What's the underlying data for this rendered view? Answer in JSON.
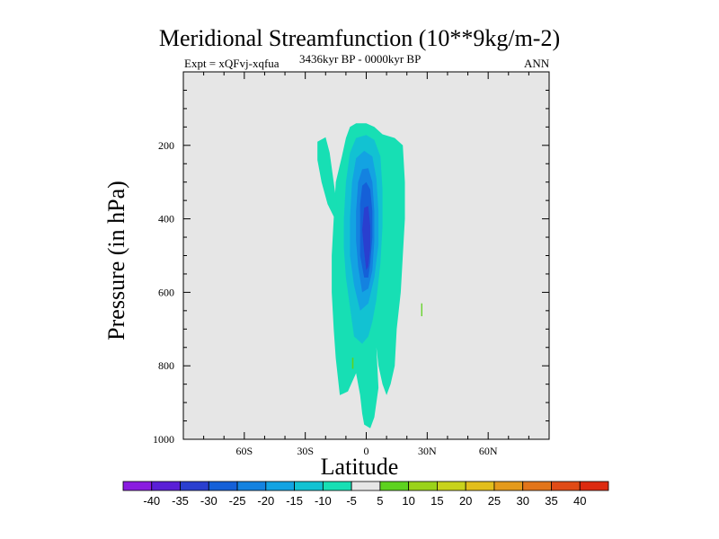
{
  "chart_data": {
    "type": "contour",
    "title": "Meridional Streamfunction (10**9kg/m-2)",
    "subtitle_left": "Expt = xQFvj-xqfua",
    "subtitle_center": "3436kyr BP - 0000kyr BP",
    "subtitle_right": "ANN",
    "xlabel": "Latitude",
    "ylabel": "Pressure (in hPa)",
    "xlim": [
      -90,
      90
    ],
    "ylim": [
      1000,
      0
    ],
    "x_ticks": [
      {
        "value": -60,
        "label": "60S"
      },
      {
        "value": -30,
        "label": "30S"
      },
      {
        "value": 0,
        "label": "0"
      },
      {
        "value": 30,
        "label": "30N"
      },
      {
        "value": 60,
        "label": "60N"
      }
    ],
    "y_ticks": [
      {
        "value": 200,
        "label": "200"
      },
      {
        "value": 400,
        "label": "400"
      },
      {
        "value": 600,
        "label": "600"
      },
      {
        "value": 800,
        "label": "800"
      },
      {
        "value": 1000,
        "label": "1000"
      }
    ],
    "background_color": "#e6e6e6",
    "colorbar": {
      "labels": [
        "-40",
        "-35",
        "-30",
        "-25",
        "-20",
        "-15",
        "-10",
        "-5",
        "5",
        "10",
        "15",
        "20",
        "25",
        "30",
        "35",
        "40"
      ],
      "colors": [
        "#8a1be0",
        "#5a1fd6",
        "#2a3fcf",
        "#1560d8",
        "#1482e0",
        "#13a3e2",
        "#12c2d2",
        "#17dfb4",
        "#e6e6e6",
        "#5dd21f",
        "#9ad21a",
        "#c8d21c",
        "#e2be1c",
        "#e49a1c",
        "#e2751a",
        "#e04b16",
        "#dc2a10"
      ]
    },
    "contours": [
      {
        "level": "-5",
        "color": "#17dfb4",
        "points": [
          [
            -13,
            880
          ],
          [
            -15,
            780
          ],
          [
            -16,
            700
          ],
          [
            -17,
            600
          ],
          [
            -17,
            500
          ],
          [
            -16,
            400
          ],
          [
            -15,
            300
          ],
          [
            -12,
            230
          ],
          [
            -10,
            180
          ],
          [
            -8,
            150
          ],
          [
            -5,
            140
          ],
          [
            0,
            140
          ],
          [
            4,
            150
          ],
          [
            8,
            170
          ],
          [
            14,
            180
          ],
          [
            18,
            200
          ],
          [
            19,
            300
          ],
          [
            19,
            400
          ],
          [
            18,
            500
          ],
          [
            17,
            600
          ],
          [
            15,
            700
          ],
          [
            14,
            800
          ],
          [
            12,
            850
          ],
          [
            10,
            880
          ],
          [
            8,
            850
          ],
          [
            6,
            800
          ],
          [
            5,
            750
          ],
          [
            6,
            860
          ],
          [
            4,
            940
          ],
          [
            2,
            970
          ],
          [
            -1,
            960
          ],
          [
            -2,
            930
          ],
          [
            -3,
            880
          ],
          [
            -5,
            820
          ],
          [
            -9,
            870
          ]
        ]
      },
      {
        "level": "-5",
        "color": "#17dfb4",
        "points": [
          [
            -24,
            190
          ],
          [
            -20,
            178
          ],
          [
            -18,
            220
          ],
          [
            -16,
            300
          ],
          [
            -14,
            380
          ],
          [
            -15,
            405
          ],
          [
            -19,
            360
          ],
          [
            -22,
            300
          ],
          [
            -24,
            240
          ]
        ]
      },
      {
        "level": "-10",
        "color": "#12c2d2",
        "points": [
          [
            -6,
            720
          ],
          [
            -8,
            640
          ],
          [
            -10,
            560
          ],
          [
            -11,
            480
          ],
          [
            -11,
            400
          ],
          [
            -10,
            300
          ],
          [
            -8,
            220
          ],
          [
            -5,
            180
          ],
          [
            0,
            172
          ],
          [
            4,
            185
          ],
          [
            7,
            230
          ],
          [
            8,
            320
          ],
          [
            8,
            420
          ],
          [
            7,
            520
          ],
          [
            5,
            620
          ],
          [
            3,
            680
          ],
          [
            1,
            720
          ],
          [
            -2,
            740
          ]
        ]
      },
      {
        "level": "-15",
        "color": "#13a3e2",
        "points": [
          [
            -3,
            650
          ],
          [
            -6,
            580
          ],
          [
            -8,
            500
          ],
          [
            -8,
            400
          ],
          [
            -7,
            300
          ],
          [
            -5,
            235
          ],
          [
            -1,
            215
          ],
          [
            3,
            230
          ],
          [
            5,
            290
          ],
          [
            6,
            380
          ],
          [
            6,
            470
          ],
          [
            4,
            560
          ],
          [
            1,
            630
          ]
        ]
      },
      {
        "level": "-20",
        "color": "#1482e0",
        "points": [
          [
            -2,
            600
          ],
          [
            -4,
            530
          ],
          [
            -5,
            460
          ],
          [
            -5,
            380
          ],
          [
            -4,
            300
          ],
          [
            -2,
            265
          ],
          [
            1,
            262
          ],
          [
            3,
            300
          ],
          [
            4,
            380
          ],
          [
            4,
            460
          ],
          [
            3,
            540
          ],
          [
            1,
            590
          ]
        ]
      },
      {
        "level": "-25",
        "color": "#1560d8",
        "points": [
          [
            -1,
            560
          ],
          [
            -3,
            500
          ],
          [
            -3,
            430
          ],
          [
            -3,
            360
          ],
          [
            -2,
            310
          ],
          [
            0,
            300
          ],
          [
            2,
            320
          ],
          [
            3,
            380
          ],
          [
            3,
            450
          ],
          [
            2,
            520
          ],
          [
            1,
            560
          ]
        ]
      },
      {
        "level": "-30",
        "color": "#2a3fcf",
        "points": [
          [
            0,
            540
          ],
          [
            -1,
            490
          ],
          [
            -2,
            430
          ],
          [
            -1,
            370
          ],
          [
            1,
            365
          ],
          [
            2,
            420
          ],
          [
            2,
            480
          ],
          [
            1,
            530
          ]
        ]
      },
      {
        "level": "5",
        "color": "#5dd21f",
        "points": [
          [
            27,
            630
          ],
          [
            27.6,
            630
          ],
          [
            27.6,
            665
          ],
          [
            27,
            665
          ]
        ]
      },
      {
        "level": "5",
        "color": "#5dd21f",
        "points": [
          [
            -7,
            778
          ],
          [
            -6.3,
            778
          ],
          [
            -6.3,
            808
          ],
          [
            -7,
            808
          ]
        ]
      }
    ]
  }
}
